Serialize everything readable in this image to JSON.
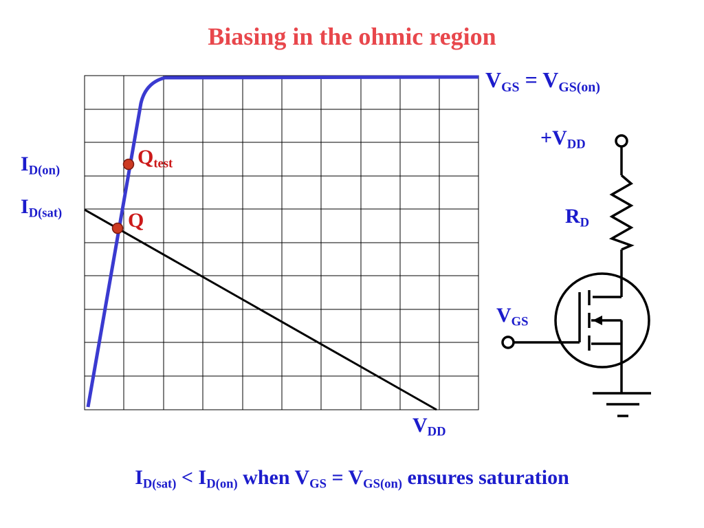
{
  "title": "Biasing in the ohmic region",
  "colors": {
    "title": "#e8474c",
    "labels": "#1c1ccc",
    "curve": "#3a3ad0",
    "points": "#cc1a1a"
  },
  "graph": {
    "curve_label": {
      "main": "V",
      "sub": "GS",
      "eq": " = V",
      "sub2": "GS(on)"
    },
    "id_on": {
      "main": "I",
      "sub": "D(on)"
    },
    "id_sat": {
      "main": "I",
      "sub": "D(sat)"
    },
    "q_test": {
      "main": "Q",
      "sub": "test"
    },
    "q": "Q",
    "vdd": {
      "main": "V",
      "sub": "DD"
    }
  },
  "circuit": {
    "supply": {
      "main": "+V",
      "sub": "DD"
    },
    "resistor": {
      "main": "R",
      "sub": "D"
    },
    "gate_input": {
      "main": "V",
      "sub": "GS"
    }
  },
  "caption": {
    "p1": "I",
    "s1": "D(sat)",
    "p2": " < I",
    "s2": "D(on)",
    "p3": " when V",
    "s3": "GS",
    "p4": " = V",
    "s4": "GS(on)",
    "p5": " ensures saturation"
  }
}
